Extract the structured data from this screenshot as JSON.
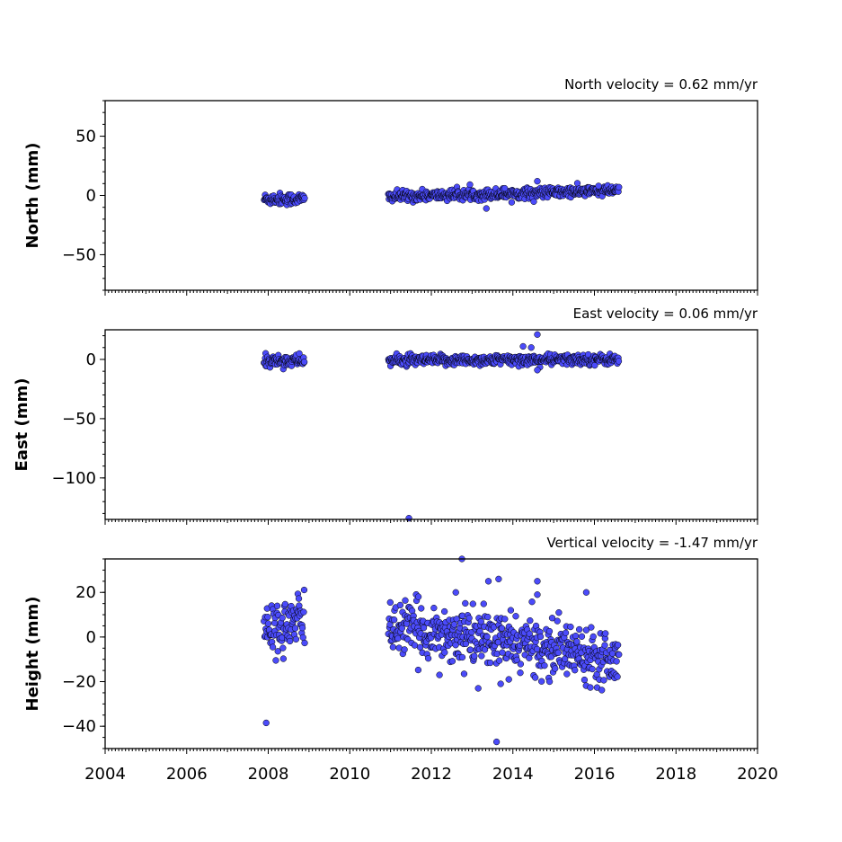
{
  "colors": {
    "marker": "#4b4bfa",
    "marker_edge": "#000000"
  },
  "x_axis": {
    "range": [
      2004,
      2020
    ],
    "ticks": [
      "2004",
      "2006",
      "2008",
      "2010",
      "2012",
      "2014",
      "2016",
      "2018",
      "2020"
    ]
  },
  "chart_data": [
    {
      "type": "scatter",
      "title": "North velocity = 0.62 mm/yr",
      "ylabel": "North (mm)",
      "xlim": [
        2004,
        2020
      ],
      "ylim": [
        -80,
        80
      ],
      "yticks": [
        "50",
        "0",
        "−50"
      ],
      "velocity_mm_per_yr": 0.62,
      "segments": [
        {
          "x_start": 2007.9,
          "x_end": 2008.9,
          "mean": -3,
          "scatter": 2.5
        },
        {
          "x_start": 2010.95,
          "x_end": 2016.6,
          "mean_start": -1,
          "mean_end": 4,
          "scatter": 2.2
        }
      ],
      "outliers": [
        {
          "x": 2014.6,
          "y": 12
        },
        {
          "x": 2013.35,
          "y": -11
        },
        {
          "x": 2016.1,
          "y": 8
        },
        {
          "x": 2013.8,
          "y": 6
        }
      ]
    },
    {
      "type": "scatter",
      "title": "East velocity = 0.06 mm/yr",
      "ylabel": "East (mm)",
      "xlim": [
        2004,
        2020
      ],
      "ylim": [
        -135,
        25
      ],
      "yticks": [
        "0",
        "−50",
        "−100"
      ],
      "velocity_mm_per_yr": 0.06,
      "segments": [
        {
          "x_start": 2007.9,
          "x_end": 2008.9,
          "mean": -1,
          "scatter": 2.5
        },
        {
          "x_start": 2010.95,
          "x_end": 2016.6,
          "mean_start": -1,
          "mean_end": 0,
          "scatter": 2.2
        }
      ],
      "outliers": [
        {
          "x": 2014.6,
          "y": 21
        },
        {
          "x": 2014.25,
          "y": 11
        },
        {
          "x": 2014.45,
          "y": 10
        },
        {
          "x": 2014.6,
          "y": -9
        },
        {
          "x": 2011.45,
          "y": -134
        }
      ]
    },
    {
      "type": "scatter",
      "title": "Vertical velocity = -1.47 mm/yr",
      "ylabel": "Height (mm)",
      "xlim": [
        2004,
        2020
      ],
      "ylim": [
        -50,
        35
      ],
      "yticks": [
        "20",
        "0",
        "−20",
        "−40"
      ],
      "velocity_mm_per_yr": -1.47,
      "segments": [
        {
          "x_start": 2007.9,
          "x_end": 2008.9,
          "mean_start": 2,
          "mean_end": 8,
          "scatter": 6
        },
        {
          "x_start": 2010.95,
          "x_end": 2016.6,
          "mean_start": 5,
          "mean_end": -9,
          "scatter": 6
        }
      ],
      "outliers": [
        {
          "x": 2007.95,
          "y": -38.5
        },
        {
          "x": 2013.6,
          "y": -47
        },
        {
          "x": 2012.75,
          "y": 35
        },
        {
          "x": 2013.65,
          "y": 26
        },
        {
          "x": 2013.4,
          "y": 25
        },
        {
          "x": 2014.6,
          "y": 25
        },
        {
          "x": 2015.8,
          "y": 20
        },
        {
          "x": 2014.6,
          "y": 19
        },
        {
          "x": 2012.6,
          "y": 20
        },
        {
          "x": 2013.7,
          "y": -21
        },
        {
          "x": 2014.9,
          "y": -20
        },
        {
          "x": 2012.2,
          "y": -17
        },
        {
          "x": 2013.9,
          "y": -19
        }
      ]
    }
  ]
}
